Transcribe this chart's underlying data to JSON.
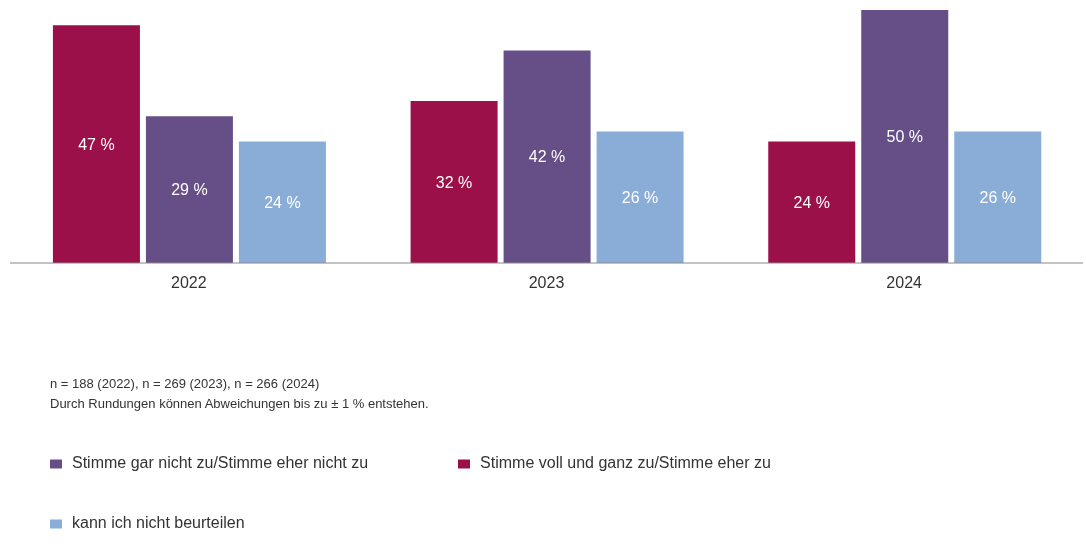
{
  "chart_data": {
    "type": "bar",
    "categories": [
      "2022",
      "2023",
      "2024"
    ],
    "series": [
      {
        "name": "Stimme voll und ganz zu/Stimme eher zu",
        "color": "#9b1049",
        "values": [
          47,
          32,
          24
        ],
        "value_labels": [
          "47 %",
          "32 %",
          "24 %"
        ]
      },
      {
        "name": "Stimme gar nicht zu/Stimme eher nicht zu",
        "color": "#664e87",
        "values": [
          29,
          42,
          50
        ],
        "value_labels": [
          "29 %",
          "42 %",
          "50 %"
        ]
      },
      {
        "name": "kann ich nicht beurteilen",
        "color": "#8aadd8",
        "values": [
          24,
          26,
          26
        ],
        "value_labels": [
          "24 %",
          "26 %",
          "26 %"
        ]
      }
    ],
    "annotations": [
      "n = 188 (2022), n = 269 (2023), n = 266 (2024)",
      "Durch Rundungen können Abweichungen bis zu ± 1 % entstehen."
    ],
    "legend": "bottom"
  }
}
